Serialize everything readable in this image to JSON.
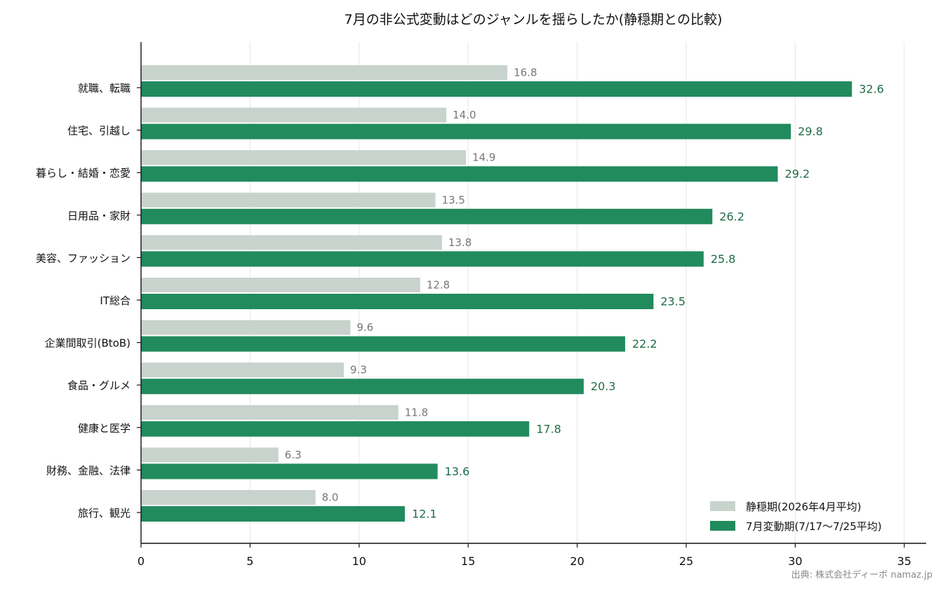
{
  "chart_data": {
    "type": "bar",
    "orientation": "horizontal",
    "title": "7月の非公式変動はどのジャンルを揺らしたか(静穏期との比較)",
    "categories": [
      "就職、転職",
      "住宅、引越し",
      "暮らし・結婚・恋愛",
      "日用品・家財",
      "美容、ファッション",
      "IT総合",
      "企業間取引(BtoB)",
      "食品・グルメ",
      "健康と医学",
      "財務、金融、法律",
      "旅行、観光"
    ],
    "series": [
      {
        "name": "静穏期(2026年4月平均)",
        "color": "#c8d3cd",
        "values": [
          16.8,
          14.0,
          14.9,
          13.5,
          13.8,
          12.8,
          9.6,
          9.3,
          11.8,
          6.3,
          8.0
        ],
        "labels": [
          "16.8",
          "14.0",
          "14.9",
          "13.5",
          "13.8",
          "12.8",
          "9.6",
          "9.3",
          "11.8",
          "6.3",
          "8.0"
        ]
      },
      {
        "name": "7月変動期(7/17〜7/25平均)",
        "color": "#218b5e",
        "values": [
          32.6,
          29.8,
          29.2,
          26.2,
          25.8,
          23.5,
          22.2,
          20.3,
          17.8,
          13.6,
          12.1
        ],
        "labels": [
          "32.6",
          "29.8",
          "29.2",
          "26.2",
          "25.8",
          "23.5",
          "22.2",
          "20.3",
          "17.8",
          "13.6",
          "12.1"
        ]
      }
    ],
    "xlim": [
      0,
      36
    ],
    "xticks": [
      0,
      5,
      10,
      15,
      20,
      25,
      30,
      35
    ],
    "xtick_labels": [
      "0",
      "5",
      "10",
      "15",
      "20",
      "25",
      "30",
      "35"
    ],
    "grid": "vertical",
    "legend_position": "bottom-right",
    "source": "出典: 株式会社ディーボ namaz.jp"
  }
}
